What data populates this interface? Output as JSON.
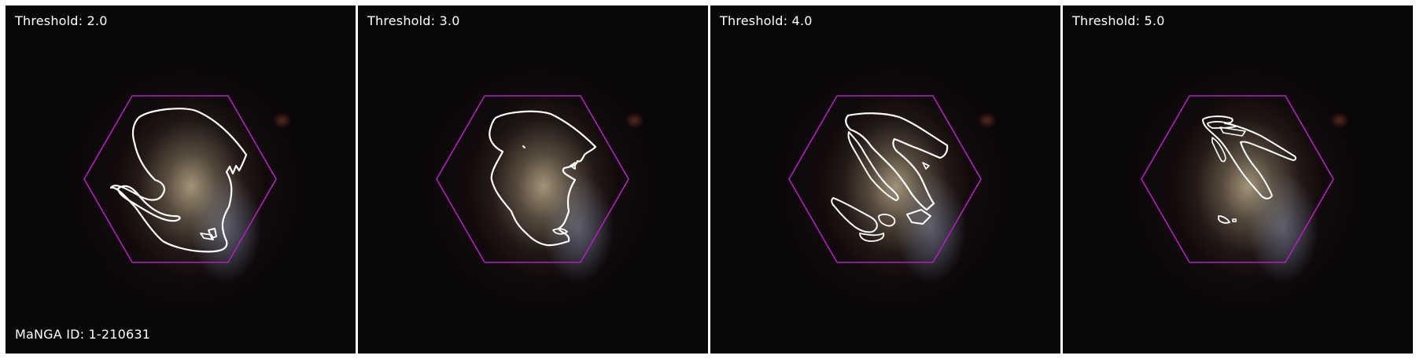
{
  "panels": [
    {
      "threshold_label": "Threshold: 2.0"
    },
    {
      "threshold_label": "Threshold: 3.0"
    },
    {
      "threshold_label": "Threshold: 4.0"
    },
    {
      "threshold_label": "Threshold: 5.0"
    }
  ],
  "galaxy_id_label": "MaNGA ID: 1-210631",
  "colors": {
    "hexagon": "#b020c0",
    "contour": "#ffffff",
    "background": "#0a0709"
  }
}
